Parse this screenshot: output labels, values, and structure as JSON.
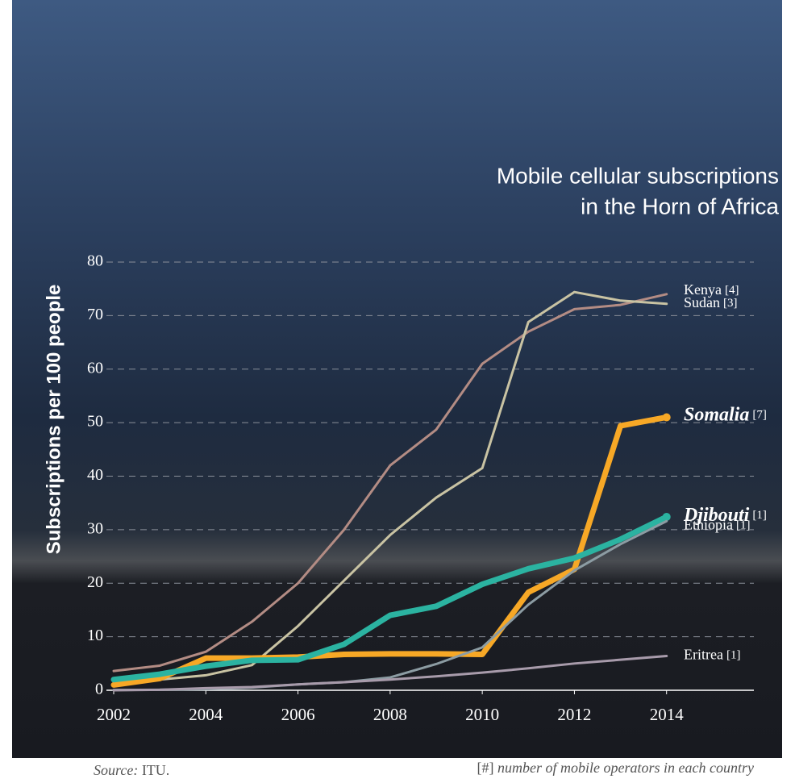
{
  "chart_data": {
    "type": "line",
    "title": [
      "Mobile cellular subscriptions",
      "in the Horn of Africa"
    ],
    "y_label": "Subscriptions per 100 people",
    "x": [
      2002,
      2003,
      2004,
      2005,
      2006,
      2007,
      2008,
      2009,
      2010,
      2011,
      2012,
      2013,
      2014
    ],
    "xlim": [
      2002,
      2016
    ],
    "xticks": [
      2002,
      2004,
      2006,
      2008,
      2010,
      2012,
      2014
    ],
    "ylim": [
      0,
      80
    ],
    "yticks": [
      0,
      10,
      20,
      30,
      40,
      50,
      60,
      70,
      80
    ],
    "grid": true,
    "series": [
      {
        "name": "Kenya",
        "operators": "[4]",
        "bold": false,
        "width": 3,
        "color": "#b38c84",
        "values": [
          3.6,
          4.6,
          7.2,
          12.8,
          20,
          30,
          42,
          48.7,
          61,
          67,
          71.2,
          72,
          74
        ]
      },
      {
        "name": "Sudan",
        "operators": "[3]",
        "bold": false,
        "width": 3,
        "color": "#c9c3a3",
        "values": [
          1.2,
          2,
          2.8,
          4.7,
          12,
          20.5,
          29,
          36,
          41.5,
          68.8,
          74.4,
          72.8,
          72.2
        ]
      },
      {
        "name": "Somalia",
        "operators": "[7]",
        "bold": true,
        "width": 7,
        "color": "#f7a826",
        "values": [
          1,
          2.2,
          6,
          6,
          6.2,
          6.7,
          6.8,
          6.8,
          6.7,
          18.3,
          22.6,
          49.4,
          51
        ]
      },
      {
        "name": "Djibouti",
        "operators": "[1]",
        "bold": true,
        "width": 7,
        "color": "#2bb3a1",
        "values": [
          2,
          3,
          4.5,
          5.6,
          5.7,
          8.6,
          14,
          15.7,
          19.8,
          22.7,
          24.7,
          28.2,
          32.4
        ]
      },
      {
        "name": "Ethiopia",
        "operators": "[1]",
        "bold": false,
        "width": 3,
        "color": "#8c9ca3",
        "values": [
          0.05,
          0.1,
          0.2,
          0.5,
          1.1,
          1.5,
          2.4,
          4.9,
          8,
          16,
          22.4,
          27.3,
          31.6
        ]
      },
      {
        "name": "Eritrea",
        "operators": "[1]",
        "bold": false,
        "width": 3,
        "color": "#a89bab",
        "values": [
          0,
          0.1,
          0.4,
          0.6,
          1.1,
          1.5,
          2,
          2.6,
          3.3,
          4.1,
          5,
          5.7,
          6.4
        ]
      }
    ],
    "source_label": "Source:",
    "source": "ITU.",
    "note_symbol": "[#]",
    "note": "number of mobile operators in each country"
  }
}
